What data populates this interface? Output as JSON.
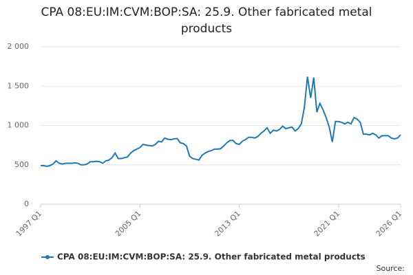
{
  "chart_data": {
    "type": "line",
    "title": "CPA 08:EU:IM:CVM:BOP:SA: 25.9. Other fabricated metal products",
    "categories": [
      "1997 Q1",
      null,
      null,
      null,
      null,
      null,
      null,
      null,
      null,
      null,
      null,
      null,
      null,
      null,
      null,
      null,
      null,
      null,
      null,
      null,
      null,
      null,
      null,
      null,
      null,
      null,
      null,
      null,
      null,
      null,
      null,
      null,
      "2005 Q1",
      null,
      null,
      null,
      null,
      null,
      null,
      null,
      null,
      null,
      null,
      null,
      null,
      null,
      null,
      null,
      null,
      null,
      null,
      null,
      null,
      null,
      null,
      null,
      null,
      null,
      null,
      null,
      null,
      null,
      null,
      null,
      "2013 Q1",
      null,
      null,
      null,
      null,
      null,
      null,
      null,
      null,
      null,
      null,
      null,
      null,
      null,
      null,
      null,
      null,
      null,
      null,
      null,
      null,
      null,
      null,
      null,
      null,
      null,
      null,
      null,
      null,
      null,
      null,
      null,
      "2021 Q1",
      null,
      null,
      null,
      null,
      null,
      null,
      null,
      null,
      null,
      null,
      null,
      null,
      null,
      null,
      null,
      null,
      null,
      null,
      null,
      "2026 Q1"
    ],
    "series": [
      {
        "name": "CPA 08:EU:IM:CVM:BOP:SA: 25.9. Other fabricated metal products",
        "color": "#1f78b4",
        "values": [
          490,
          490,
          480,
          490,
          510,
          550,
          520,
          510,
          520,
          520,
          520,
          525,
          520,
          500,
          500,
          510,
          540,
          540,
          545,
          540,
          520,
          550,
          560,
          590,
          650,
          580,
          580,
          590,
          600,
          650,
          680,
          700,
          720,
          760,
          750,
          745,
          740,
          760,
          800,
          790,
          840,
          825,
          820,
          830,
          835,
          780,
          770,
          740,
          610,
          580,
          570,
          560,
          620,
          650,
          670,
          680,
          700,
          700,
          705,
          740,
          780,
          810,
          810,
          770,
          760,
          800,
          820,
          850,
          850,
          840,
          860,
          900,
          930,
          970,
          900,
          940,
          930,
          950,
          990,
          960,
          970,
          980,
          930,
          960,
          1020,
          1230,
          1620,
          1350,
          1610,
          1170,
          1280,
          1200,
          1100,
          980,
          790,
          1050,
          1050,
          1040,
          1020,
          1040,
          1020,
          1100,
          1080,
          1040,
          890,
          890,
          880,
          900,
          880,
          840,
          870,
          870,
          870,
          840,
          830,
          840,
          880
        ]
      }
    ],
    "ylim": [
      0,
      2000
    ],
    "yticks": [
      0,
      500,
      {
        "value": 1000,
        "label": "1 000"
      },
      {
        "value": 1500,
        "label": "1 500"
      },
      {
        "value": 2000,
        "label": "2 000"
      }
    ],
    "grid": true,
    "source_label": "Source:"
  }
}
